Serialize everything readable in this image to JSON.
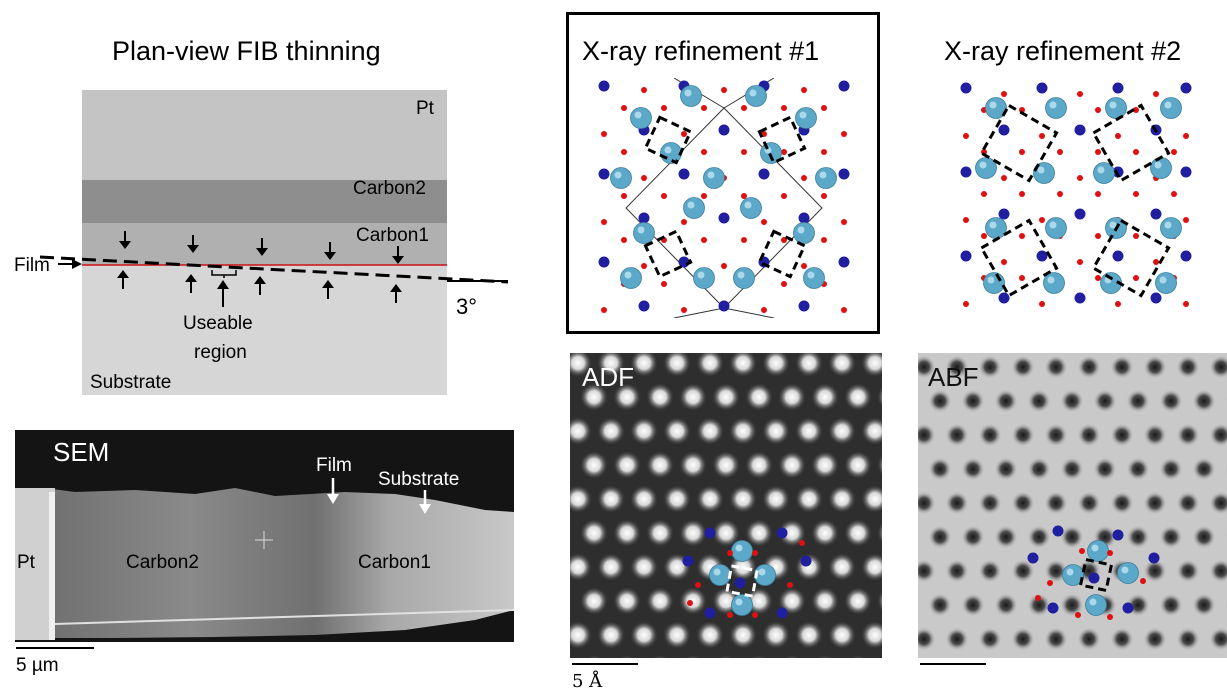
{
  "panel_a": {
    "title": "Plan-view FIB thinning",
    "layers": {
      "pt": "Pt",
      "carbon2": "Carbon2",
      "carbon1": "Carbon1",
      "substrate": "Substrate"
    },
    "film_label": "Film",
    "useable_region_line1": "Useable",
    "useable_region_line2": "region",
    "angle_label": "3°"
  },
  "panel_sem": {
    "label": "SEM",
    "pt": "Pt",
    "carbon2": "Carbon2",
    "carbon1": "Carbon1",
    "film": "Film",
    "substrate": "Substrate",
    "scale": "5 µm"
  },
  "panel_x1": {
    "title": "X-ray refinement #1"
  },
  "panel_x2": {
    "title": "X-ray refinement #2"
  },
  "panel_adf": {
    "label": "ADF",
    "scale": "5 Å"
  },
  "panel_abf": {
    "label": "ABF"
  },
  "colors": {
    "atom_large": "#5ca8c8",
    "atom_blue": "#1f1fa0",
    "atom_red": "#e01010",
    "film_line": "#d01010",
    "pt_layer": "#c4c4c4",
    "carbon2_layer": "#8e8e8e",
    "carbon1_layer": "#b0b0b0",
    "substrate_layer": "#d6d6d6"
  }
}
